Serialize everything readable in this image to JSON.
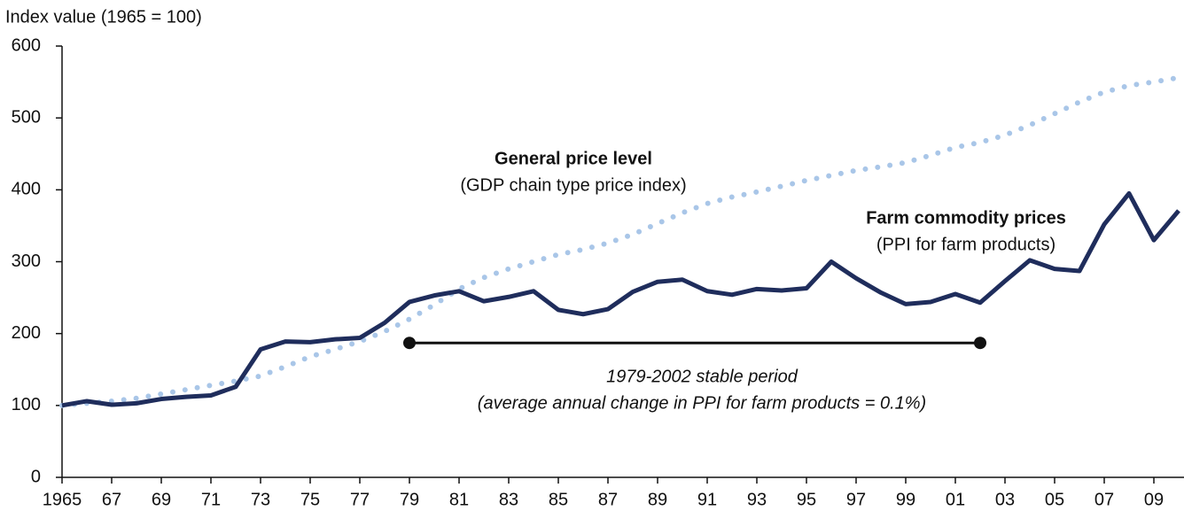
{
  "chart_data": {
    "type": "line",
    "y_axis_label": "Index value (1965 = 100)",
    "x": [
      1965,
      1966,
      1967,
      1968,
      1969,
      1970,
      1971,
      1972,
      1973,
      1974,
      1975,
      1976,
      1977,
      1978,
      1979,
      1980,
      1981,
      1982,
      1983,
      1984,
      1985,
      1986,
      1987,
      1988,
      1989,
      1990,
      1991,
      1992,
      1993,
      1994,
      1995,
      1996,
      1997,
      1998,
      1999,
      2000,
      2001,
      2002,
      2003,
      2004,
      2005,
      2006,
      2007,
      2008,
      2009,
      2010
    ],
    "series": [
      {
        "name": "Farm commodity prices",
        "subname": "(PPI for farm products)",
        "color": "#1f2d5c",
        "style": "solid",
        "values": [
          100,
          106,
          101,
          103,
          109,
          112,
          114,
          126,
          178,
          189,
          188,
          192,
          194,
          215,
          244,
          253,
          259,
          245,
          251,
          259,
          233,
          227,
          234,
          258,
          272,
          275,
          259,
          254,
          262,
          260,
          263,
          300,
          277,
          257,
          241,
          244,
          255,
          243,
          273,
          302,
          290,
          287,
          352,
          395,
          330,
          371
        ]
      },
      {
        "name": "General price level",
        "subname": "(GDP chain type price index)",
        "color": "#a9c6e8",
        "style": "dotted",
        "values": [
          100,
          103,
          106,
          110,
          116,
          122,
          128,
          134,
          141,
          154,
          168,
          178,
          189,
          203,
          220,
          240,
          262,
          278,
          290,
          300,
          310,
          317,
          326,
          338,
          353,
          368,
          381,
          390,
          397,
          405,
          413,
          420,
          427,
          432,
          438,
          448,
          459,
          466,
          476,
          490,
          506,
          522,
          536,
          545,
          550,
          556
        ]
      }
    ],
    "period": {
      "x": [
        1979,
        2002
      ],
      "y": 187,
      "color": "#111111",
      "label": "1979-2002 stable period",
      "note": "(average annual change in PPI for farm products = 0.1%)"
    },
    "xlim": [
      1965,
      2010
    ],
    "xticks": [
      1965,
      {
        "value": 1967,
        "label": "67"
      },
      {
        "value": 1969,
        "label": "69"
      },
      {
        "value": 1971,
        "label": "71"
      },
      {
        "value": 1973,
        "label": "73"
      },
      {
        "value": 1975,
        "label": "75"
      },
      {
        "value": 1977,
        "label": "77"
      },
      {
        "value": 1979,
        "label": "79"
      },
      {
        "value": 1981,
        "label": "81"
      },
      {
        "value": 1983,
        "label": "83"
      },
      {
        "value": 1985,
        "label": "85"
      },
      {
        "value": 1987,
        "label": "87"
      },
      {
        "value": 1989,
        "label": "89"
      },
      {
        "value": 1991,
        "label": "91"
      },
      {
        "value": 1993,
        "label": "93"
      },
      {
        "value": 1995,
        "label": "95"
      },
      {
        "value": 1997,
        "label": "97"
      },
      {
        "value": 1999,
        "label": "99"
      },
      {
        "value": 2001,
        "label": "01"
      },
      {
        "value": 2003,
        "label": "03"
      },
      {
        "value": 2005,
        "label": "05"
      },
      {
        "value": 2007,
        "label": "07"
      },
      {
        "value": 2009,
        "label": "09"
      }
    ],
    "ylim": [
      0,
      600
    ],
    "yticks": [
      0,
      100,
      200,
      300,
      400,
      500,
      600
    ],
    "grid": false
  }
}
